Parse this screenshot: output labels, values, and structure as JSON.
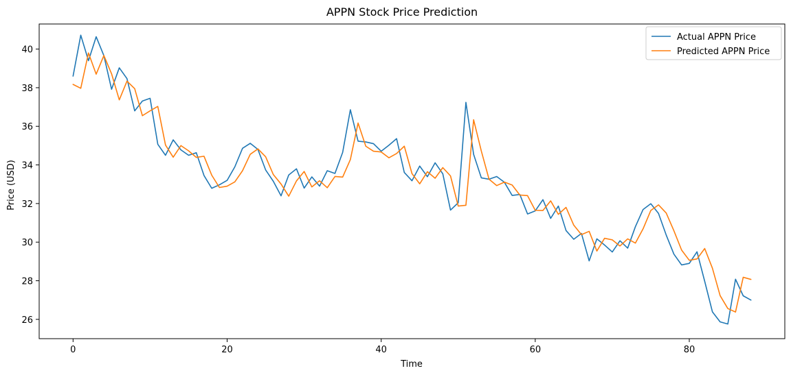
{
  "chart_data": {
    "type": "line",
    "title": "APPN Stock Price Prediction",
    "xlabel": "Time",
    "ylabel": "Price (USD)",
    "xlim": [
      -4.4,
      92.4
    ],
    "ylim": [
      25.0,
      41.3
    ],
    "xticks": [
      0,
      20,
      40,
      60,
      80
    ],
    "yticks": [
      26,
      28,
      30,
      32,
      34,
      36,
      38,
      40
    ],
    "grid": false,
    "legend_position": "top-right",
    "series": [
      {
        "name": "Actual APPN Price",
        "color": "#1f77b4",
        "values": [
          38.6,
          40.72,
          39.4,
          40.64,
          39.66,
          37.92,
          39.03,
          38.47,
          36.8,
          37.31,
          37.45,
          35.07,
          34.5,
          35.3,
          34.78,
          34.5,
          34.63,
          33.45,
          32.79,
          32.97,
          33.2,
          33.9,
          34.86,
          35.12,
          34.8,
          33.74,
          33.15,
          32.4,
          33.48,
          33.8,
          32.8,
          33.38,
          32.9,
          33.7,
          33.56,
          34.65,
          36.86,
          35.23,
          35.19,
          35.1,
          34.71,
          35.02,
          35.36,
          33.61,
          33.18,
          33.94,
          33.39,
          34.11,
          33.54,
          31.66,
          32.04,
          37.24,
          34.55,
          33.33,
          33.26,
          33.4,
          33.1,
          32.42,
          32.47,
          31.46,
          31.62,
          32.2,
          31.23,
          31.87,
          30.6,
          30.15,
          30.45,
          29.03,
          30.17,
          29.85,
          29.49,
          30.07,
          29.69,
          30.8,
          31.69,
          31.99,
          31.49,
          30.37,
          29.38,
          28.82,
          28.9,
          29.5,
          27.97,
          26.39,
          25.87,
          25.76,
          28.08,
          27.22,
          27.0
        ]
      },
      {
        "name": "Predicted APPN Price",
        "color": "#ff7f0e",
        "values": [
          38.17,
          37.97,
          39.8,
          38.7,
          39.67,
          38.72,
          37.37,
          38.34,
          37.95,
          36.55,
          36.8,
          37.03,
          35.03,
          34.4,
          35.0,
          34.73,
          34.39,
          34.45,
          33.47,
          32.83,
          32.9,
          33.12,
          33.7,
          34.55,
          34.83,
          34.42,
          33.5,
          33.01,
          32.38,
          33.17,
          33.66,
          32.86,
          33.18,
          32.82,
          33.4,
          33.37,
          34.28,
          36.17,
          34.97,
          34.71,
          34.67,
          34.37,
          34.59,
          34.97,
          33.55,
          33.02,
          33.65,
          33.31,
          33.86,
          33.43,
          31.87,
          31.91,
          36.34,
          34.72,
          33.26,
          32.93,
          33.11,
          32.96,
          32.44,
          32.41,
          31.65,
          31.64,
          32.14,
          31.44,
          31.8,
          30.88,
          30.39,
          30.56,
          29.54,
          30.2,
          30.12,
          29.8,
          30.17,
          29.95,
          30.69,
          31.64,
          31.93,
          31.51,
          30.59,
          29.59,
          29.06,
          29.13,
          29.67,
          28.65,
          27.23,
          26.56,
          26.38,
          28.18,
          28.07
        ]
      }
    ]
  }
}
